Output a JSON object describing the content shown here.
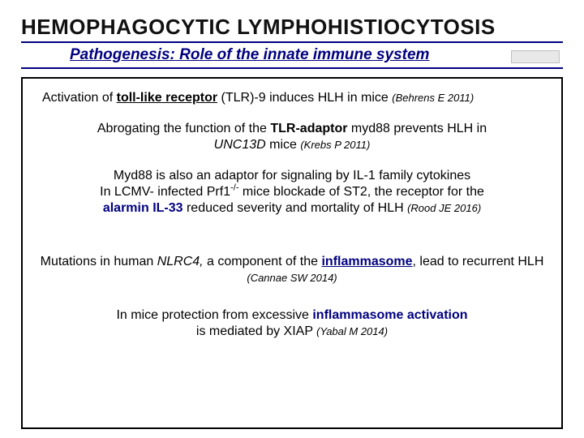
{
  "colors": {
    "accent": "#000080",
    "text": "#000000",
    "background": "#ffffff",
    "border": "#000000"
  },
  "typography": {
    "title_fontsize": 26,
    "subtitle_fontsize": 19,
    "body_fontsize": 16,
    "cite_fontsize": 13,
    "font_family": "Arial"
  },
  "title": "HEMOPHAGOCYTIC  LYMPHOHISTIOCYTOSIS",
  "subtitle_pre": "Pathogenesis:",
  "subtitle_rest": " Role of the innate immune system",
  "para1": {
    "t1": "Activation of ",
    "t2": "toll-like receptor",
    "t3": " (TLR)-9 induces HLH in mice ",
    "cite": "(Behrens E 2011)"
  },
  "para2": {
    "t1": "Abrogating the function of  the ",
    "t2": "TLR-adaptor",
    "t3": " myd88 prevents HLH in ",
    "t4": "UNC13D",
    "t5": " mice ",
    "cite": "(Krebs P 2011)"
  },
  "para3": {
    "l1": "Myd88 is also an adaptor for signaling by IL-1 family cytokines",
    "l2a": "In LCMV- infected Prf1",
    "l2sup": "-/-",
    "l2b": " mice blockade of  ST2, the receptor for the",
    "l3a": "alarmin IL-33",
    "l3b": " reduced severity and mortality of HLH ",
    "cite": "(Rood JE 2016)"
  },
  "para4": {
    "t1": "Mutations in human ",
    "t2": "NLRC4, ",
    "t3": "a component of the ",
    "t4": "inflammasome",
    "t5": ", lead to recurrent HLH ",
    "cite": "(Cannae SW 2014)"
  },
  "para5": {
    "t1": "In mice protection from excessive ",
    "t2": "inflammasome activation",
    "t3": "is mediated by XIAP ",
    "cite": "(Yabal M 2014)"
  }
}
